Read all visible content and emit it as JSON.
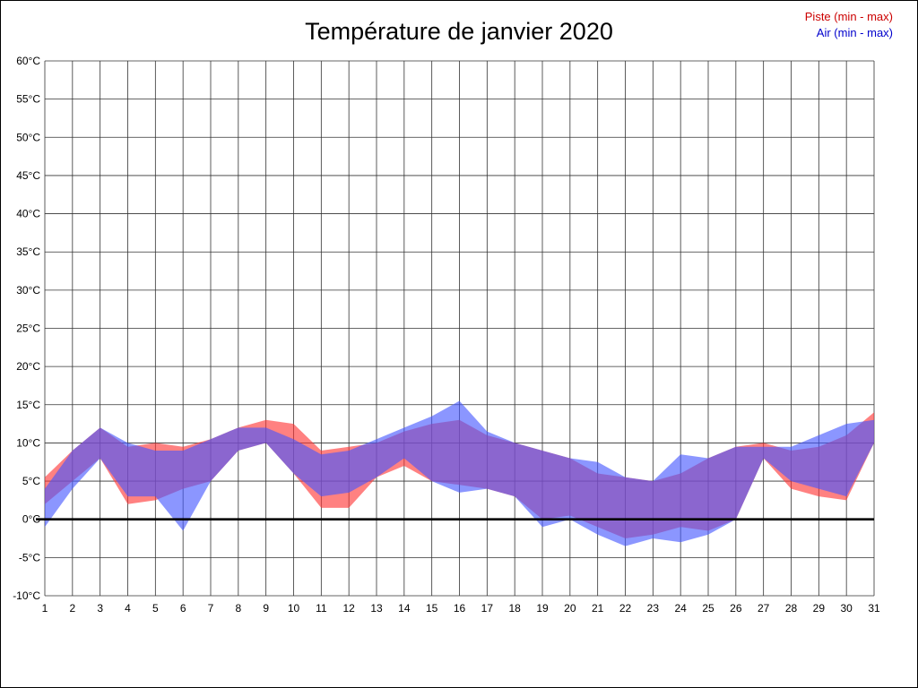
{
  "chart_data": {
    "type": "area",
    "title": "Température de janvier 2020",
    "xlabel": "",
    "ylabel": "",
    "x": [
      1,
      2,
      3,
      4,
      5,
      6,
      7,
      8,
      9,
      10,
      11,
      12,
      13,
      14,
      15,
      16,
      17,
      18,
      19,
      20,
      21,
      22,
      23,
      24,
      25,
      26,
      27,
      28,
      29,
      30,
      31
    ],
    "ylim": [
      -10,
      60
    ],
    "ytick_step": 5,
    "ytick_suffix": "°C",
    "grid": "on",
    "zero_line": true,
    "legend_position": "top-right",
    "series": [
      {
        "name": "piste",
        "label": "Piste (min - max)",
        "legend_color": "#cc0000",
        "fill": "#ff3333",
        "opacity": 0.62,
        "min": [
          2,
          5,
          8,
          2,
          2.5,
          4,
          5,
          9,
          10,
          6,
          1.5,
          1.5,
          5.5,
          7,
          5,
          4.5,
          4,
          3,
          0,
          0.5,
          -1,
          -2.5,
          -2,
          -1,
          -1.5,
          0,
          8,
          4,
          3,
          2.5,
          10
        ],
        "max": [
          5.5,
          9,
          12,
          9.5,
          10,
          9.5,
          10.5,
          12,
          13,
          12.5,
          9,
          9.5,
          10,
          11.5,
          12.5,
          13,
          11,
          10,
          9,
          8,
          6,
          5.5,
          5,
          6,
          8,
          9.5,
          10,
          9,
          9.5,
          11,
          14
        ]
      },
      {
        "name": "air",
        "label": "Air (min - max)",
        "legend_color": "#0000cc",
        "fill": "#4455ff",
        "opacity": 0.62,
        "min": [
          -1,
          4,
          8,
          3,
          3,
          -1.5,
          5,
          9,
          10,
          6,
          3,
          3.5,
          5.5,
          8,
          5,
          3.5,
          4,
          3,
          -1,
          0,
          -2,
          -3.5,
          -2.5,
          -3,
          -2,
          0,
          8,
          5,
          4,
          3,
          10
        ],
        "max": [
          4,
          9,
          12,
          10,
          9,
          9,
          10.5,
          12,
          12,
          10.5,
          8.5,
          9,
          10.5,
          12,
          13.5,
          15.5,
          11.5,
          10,
          9,
          8,
          7.5,
          5.5,
          5,
          8.5,
          8,
          9.5,
          9.5,
          9.5,
          11,
          12.5,
          13
        ]
      }
    ]
  }
}
